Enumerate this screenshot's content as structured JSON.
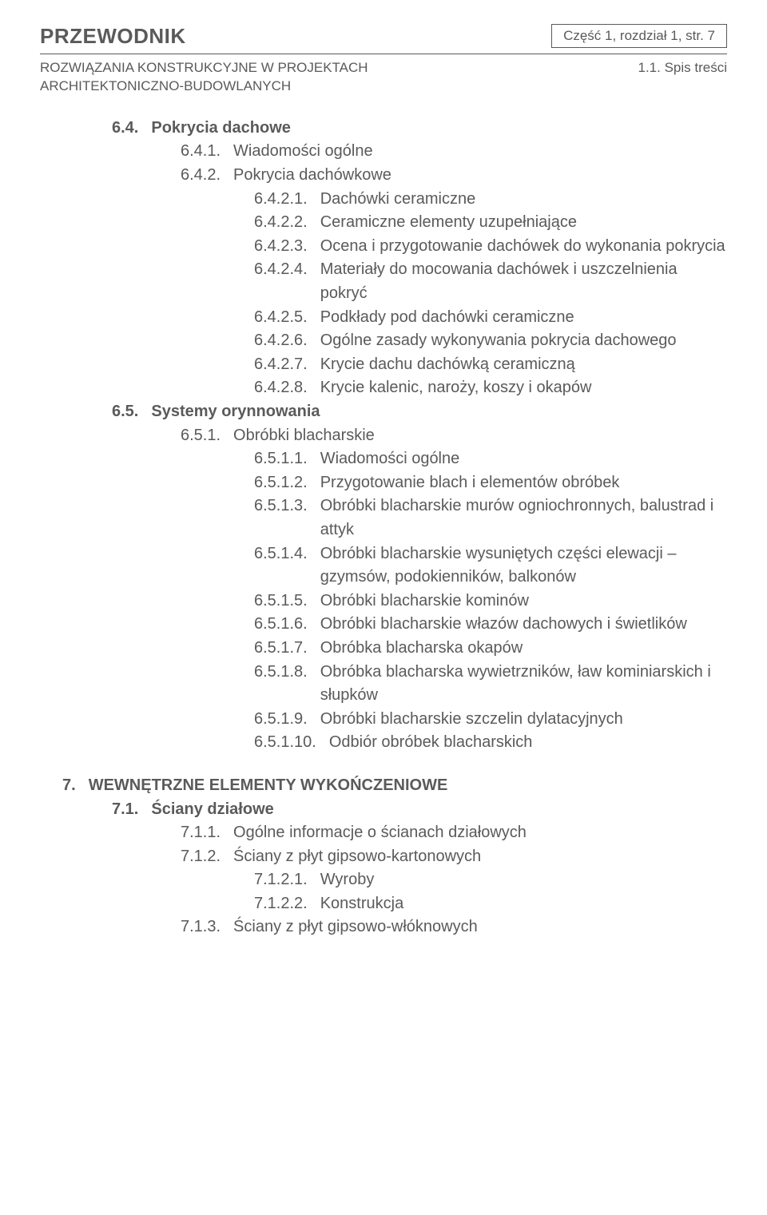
{
  "header": {
    "guide": "PRZEWODNIK",
    "partLabel": "Część 1, rozdział 1,",
    "pageLabel": " str. 7",
    "subtitleLeft": "ROZWIĄZANIA KONSTRUKCYJNE W PROJEKTACH ARCHITEKTONICZNO-BUDOWLANYCH",
    "subtitleRight": "1.1. Spis treści"
  },
  "items": [
    {
      "lvl": "l1",
      "bold": true,
      "num": "6.4.",
      "txt": "Pokrycia dachowe"
    },
    {
      "lvl": "l2",
      "bold": false,
      "num": "6.4.1.",
      "txt": "Wiadomości ogólne"
    },
    {
      "lvl": "l2",
      "bold": false,
      "num": "6.4.2.",
      "txt": "Pokrycia dachówkowe"
    },
    {
      "lvl": "l3",
      "bold": false,
      "num": "6.4.2.1.",
      "txt": "Dachówki ceramiczne"
    },
    {
      "lvl": "l3",
      "bold": false,
      "num": "6.4.2.2.",
      "txt": "Ceramiczne elementy uzupełniające"
    },
    {
      "lvl": "l3",
      "bold": false,
      "num": "6.4.2.3.",
      "txt": "Ocena i przygotowanie dachówek do wykonania pokrycia"
    },
    {
      "lvl": "l3",
      "bold": false,
      "num": "6.4.2.4.",
      "txt": "Materiały do mocowania dachówek i uszczelnienia pokryć"
    },
    {
      "lvl": "l3",
      "bold": false,
      "num": "6.4.2.5.",
      "txt": "Podkłady pod dachówki ceramiczne"
    },
    {
      "lvl": "l3",
      "bold": false,
      "num": "6.4.2.6.",
      "txt": "Ogólne zasady wykonywania pokrycia dachowego"
    },
    {
      "lvl": "l3",
      "bold": false,
      "num": "6.4.2.7.",
      "txt": "Krycie dachu dachówką ceramiczną"
    },
    {
      "lvl": "l3",
      "bold": false,
      "num": "6.4.2.8.",
      "txt": "Krycie kalenic, naroży, koszy i okapów"
    },
    {
      "lvl": "l1",
      "bold": true,
      "num": "6.5.",
      "txt": "Systemy orynnowania"
    },
    {
      "lvl": "l2",
      "bold": false,
      "num": "6.5.1.",
      "txt": "Obróbki blacharskie"
    },
    {
      "lvl": "l3",
      "bold": false,
      "num": "6.5.1.1.",
      "txt": "Wiadomości ogólne"
    },
    {
      "lvl": "l3",
      "bold": false,
      "num": "6.5.1.2.",
      "txt": "Przygotowanie blach i elementów obróbek"
    },
    {
      "lvl": "l3",
      "bold": false,
      "num": "6.5.1.3.",
      "txt": "Obróbki blacharskie murów ogniochronnych, balustrad i attyk"
    },
    {
      "lvl": "l3",
      "bold": false,
      "num": "6.5.1.4.",
      "txt": "Obróbki blacharskie wysuniętych części elewacji – gzymsów, podokienników, balkonów"
    },
    {
      "lvl": "l3",
      "bold": false,
      "num": "6.5.1.5.",
      "txt": "Obróbki blacharskie kominów"
    },
    {
      "lvl": "l3",
      "bold": false,
      "num": "6.5.1.6.",
      "txt": "Obróbki blacharskie włazów dachowych i świetlików"
    },
    {
      "lvl": "l3",
      "bold": false,
      "num": "6.5.1.7.",
      "txt": "Obróbka blacharska okapów"
    },
    {
      "lvl": "l3",
      "bold": false,
      "num": "6.5.1.8.",
      "txt": "Obróbka blacharska wywietrzników, ław kominiarskich i słupków"
    },
    {
      "lvl": "l3",
      "bold": false,
      "num": "6.5.1.9.",
      "txt": "Obróbki blacharskie szczelin dylatacyjnych"
    },
    {
      "lvl": "l3",
      "bold": false,
      "num": "6.5.1.10.",
      "txt": "Odbiór obróbek blacharskich"
    }
  ],
  "section7": [
    {
      "lvl": "l0",
      "bold": true,
      "num": "7.",
      "txt": "WEWNĘTRZNE ELEMENTY WYKOŃCZENIOWE"
    },
    {
      "lvl": "l1",
      "bold": true,
      "num": "7.1.",
      "txt": "Ściany działowe"
    },
    {
      "lvl": "l2",
      "bold": false,
      "num": "7.1.1.",
      "txt": "Ogólne informacje o ścianach działowych"
    },
    {
      "lvl": "l2",
      "bold": false,
      "num": "7.1.2.",
      "txt": "Ściany z płyt gipsowo-kartonowych"
    },
    {
      "lvl": "l3",
      "bold": false,
      "num": "7.1.2.1.",
      "txt": "Wyroby"
    },
    {
      "lvl": "l3",
      "bold": false,
      "num": "7.1.2.2.",
      "txt": "Konstrukcja"
    },
    {
      "lvl": "l2",
      "bold": false,
      "num": "7.1.3.",
      "txt": "Ściany z płyt gipsowo-włóknowych"
    }
  ]
}
